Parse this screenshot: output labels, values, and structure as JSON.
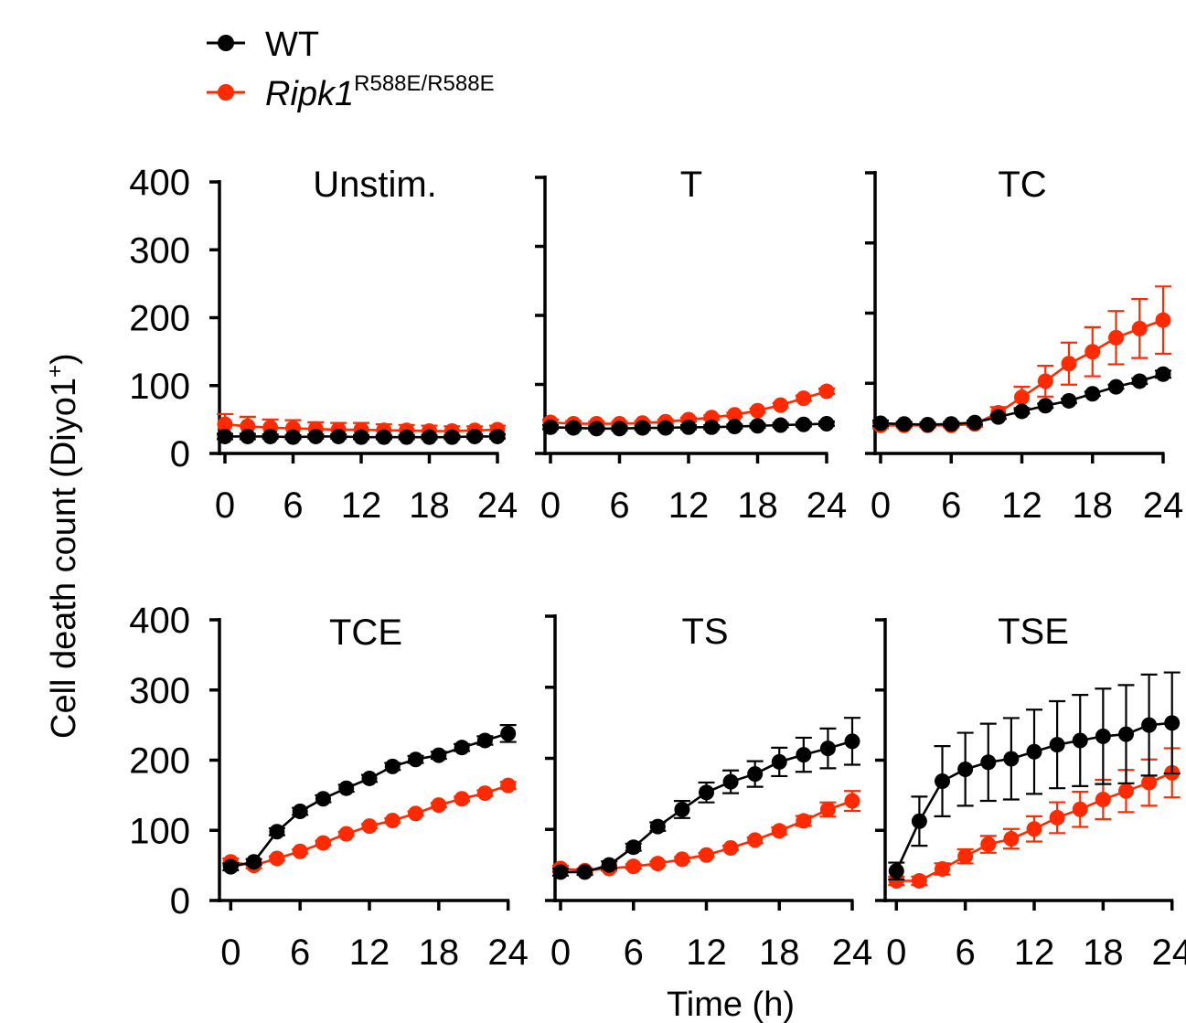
{
  "colors": {
    "wt": "#000000",
    "mutant": "#ff2a00",
    "axis": "#000000"
  },
  "legend": [
    {
      "key": "wt",
      "label": "WT",
      "sup": "",
      "italic": false
    },
    {
      "key": "mutant",
      "label": "Ripk1",
      "sup": "R588E/R588E",
      "italic": true
    }
  ],
  "axis_labels": {
    "ylabel": "Cell death count (Diyo1",
    "ylabel_sup": "+",
    "ylabel_close": ")",
    "xlabel": "Time (h)"
  },
  "chart_data": [
    {
      "type": "line",
      "title": "Unstim.",
      "xticks": [
        "0",
        "6",
        "12",
        "18",
        "24"
      ],
      "yticks": [
        "400",
        "300",
        "200",
        "100",
        "0"
      ],
      "xlim": [
        0,
        24
      ],
      "ylim": [
        0,
        400
      ],
      "x": [
        0,
        2,
        4,
        6,
        8,
        10,
        12,
        14,
        16,
        18,
        20,
        22,
        24
      ],
      "series": [
        {
          "name": "WT",
          "key": "wt",
          "values": [
            25,
            25,
            25,
            24,
            25,
            25,
            24,
            24,
            24,
            24,
            24,
            25,
            25
          ],
          "err": [
            4,
            4,
            3,
            3,
            3,
            3,
            3,
            3,
            3,
            3,
            3,
            3,
            3
          ]
        },
        {
          "name": "Ripk1 R588E/R588E",
          "key": "mutant",
          "values": [
            43,
            40,
            38,
            37,
            36,
            35,
            35,
            34,
            34,
            33,
            33,
            34,
            35
          ],
          "err": [
            15,
            14,
            12,
            12,
            10,
            10,
            10,
            9,
            8,
            8,
            7,
            6,
            6
          ]
        }
      ]
    },
    {
      "type": "line",
      "title": "T",
      "xticks": [
        "0",
        "6",
        "12",
        "18",
        "24"
      ],
      "yticks": [],
      "xlim": [
        0,
        24
      ],
      "ylim": [
        0,
        400
      ],
      "x": [
        0,
        2,
        4,
        6,
        8,
        10,
        12,
        14,
        16,
        18,
        20,
        22,
        24
      ],
      "series": [
        {
          "name": "WT",
          "key": "wt",
          "values": [
            38,
            37,
            36,
            36,
            37,
            37,
            38,
            38,
            39,
            40,
            41,
            42,
            43
          ],
          "err": [
            3,
            3,
            3,
            3,
            3,
            3,
            3,
            3,
            3,
            3,
            3,
            3,
            3
          ]
        },
        {
          "name": "Ripk1 R588E/R588E",
          "key": "mutant",
          "values": [
            45,
            43,
            43,
            43,
            44,
            46,
            49,
            52,
            56,
            62,
            70,
            80,
            90
          ],
          "err": [
            4,
            4,
            3,
            3,
            3,
            3,
            3,
            3,
            3,
            3,
            3,
            4,
            4
          ]
        }
      ]
    },
    {
      "type": "line",
      "title": "TC",
      "xticks": [
        "0",
        "6",
        "12",
        "18",
        "24"
      ],
      "yticks": [],
      "xlim": [
        0,
        24
      ],
      "ylim": [
        0,
        400
      ],
      "x": [
        0,
        2,
        4,
        6,
        8,
        10,
        12,
        14,
        16,
        18,
        20,
        22,
        24
      ],
      "series": [
        {
          "name": "WT",
          "key": "wt",
          "values": [
            43,
            42,
            41,
            42,
            44,
            52,
            60,
            68,
            75,
            85,
            95,
            103,
            113
          ],
          "err": [
            4,
            3,
            3,
            3,
            3,
            3,
            3,
            3,
            3,
            3,
            3,
            4,
            5
          ]
        },
        {
          "name": "Ripk1 R588E/R588E",
          "key": "mutant",
          "values": [
            40,
            40,
            40,
            40,
            42,
            58,
            80,
            103,
            128,
            145,
            165,
            178,
            190
          ],
          "err": [
            4,
            3,
            3,
            3,
            4,
            8,
            15,
            22,
            30,
            35,
            38,
            42,
            48
          ]
        }
      ]
    },
    {
      "type": "line",
      "title": "TCE",
      "xticks": [
        "0",
        "6",
        "12",
        "18",
        "24"
      ],
      "yticks": [
        "400",
        "300",
        "200",
        "100",
        "0"
      ],
      "xlim": [
        -0.5,
        24.5
      ],
      "ylim": [
        0,
        400
      ],
      "x": [
        0,
        2,
        4,
        6,
        8,
        10,
        12,
        14,
        16,
        18,
        20,
        22,
        24
      ],
      "series": [
        {
          "name": "WT",
          "key": "wt",
          "values": [
            48,
            55,
            98,
            127,
            145,
            160,
            174,
            191,
            201,
            207,
            218,
            228,
            238
          ],
          "err": [
            5,
            4,
            5,
            5,
            5,
            5,
            5,
            5,
            5,
            5,
            5,
            6,
            12
          ]
        },
        {
          "name": "Ripk1 R588E/R588E",
          "key": "mutant",
          "values": [
            55,
            50,
            60,
            70,
            82,
            95,
            106,
            114,
            124,
            136,
            145,
            153,
            164
          ],
          "err": [
            5,
            4,
            3,
            3,
            3,
            3,
            3,
            3,
            3,
            3,
            3,
            4,
            5
          ]
        }
      ]
    },
    {
      "type": "line",
      "title": "TS",
      "xticks": [
        "0",
        "6",
        "12",
        "18",
        "24"
      ],
      "yticks": [],
      "xlim": [
        0,
        24
      ],
      "ylim": [
        0,
        400
      ],
      "x": [
        0,
        2,
        4,
        6,
        8,
        10,
        12,
        14,
        16,
        18,
        20,
        22,
        24
      ],
      "series": [
        {
          "name": "WT",
          "key": "wt",
          "values": [
            40,
            40,
            50,
            75,
            104,
            128,
            152,
            167,
            178,
            195,
            205,
            214,
            224
          ],
          "err": [
            5,
            4,
            5,
            5,
            6,
            12,
            14,
            16,
            18,
            20,
            24,
            28,
            33
          ]
        },
        {
          "name": "Ripk1 R588E/R588E",
          "key": "mutant",
          "values": [
            45,
            42,
            45,
            48,
            52,
            58,
            64,
            74,
            85,
            98,
            112,
            128,
            140
          ],
          "err": [
            4,
            3,
            3,
            3,
            3,
            3,
            3,
            3,
            4,
            5,
            7,
            10,
            14
          ]
        }
      ]
    },
    {
      "type": "line",
      "title": "TSE",
      "xticks": [
        "0",
        "6",
        "12",
        "18",
        "24"
      ],
      "yticks": [],
      "xlim": [
        -0.5,
        24.5
      ],
      "ylim": [
        0,
        400
      ],
      "x": [
        0,
        2,
        4,
        6,
        8,
        10,
        12,
        14,
        16,
        18,
        20,
        22,
        24
      ],
      "series": [
        {
          "name": "WT",
          "key": "wt",
          "values": [
            42,
            113,
            170,
            187,
            197,
            202,
            212,
            222,
            228,
            234,
            237,
            250,
            253
          ],
          "err": [
            12,
            35,
            50,
            52,
            55,
            58,
            60,
            62,
            65,
            68,
            70,
            72,
            72
          ]
        },
        {
          "name": "Ripk1 R588E/R588E",
          "key": "mutant",
          "values": [
            28,
            28,
            45,
            63,
            80,
            88,
            102,
            118,
            130,
            144,
            156,
            168,
            182
          ],
          "err": [
            6,
            6,
            8,
            10,
            12,
            14,
            18,
            22,
            25,
            28,
            30,
            33,
            35
          ]
        }
      ]
    }
  ]
}
